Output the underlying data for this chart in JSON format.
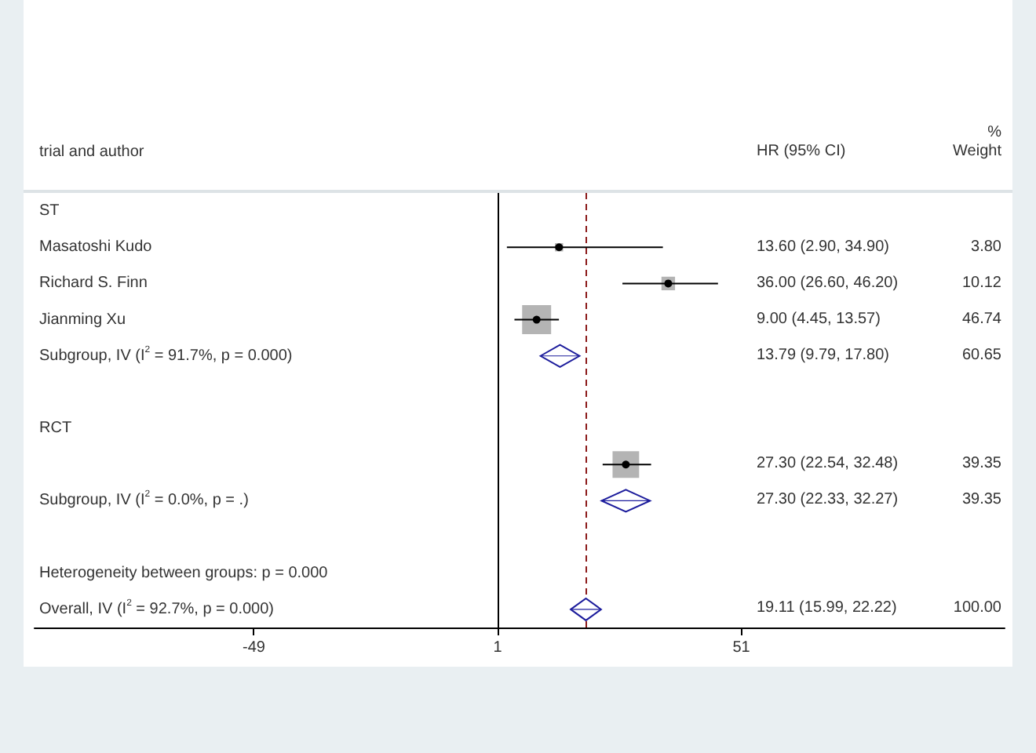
{
  "chart_data": [
    {
      "type": "scatter",
      "orientation": "horizontal",
      "ylabel": "trial and author",
      "categories": [
        "ST",
        "Masatoshi Kudo",
        "Richard S. Finn",
        "Jianming Xu",
        "Subgroup, IV (I$^{2}$ = 91.7%, p = 0.000)",
        null,
        "RCT",
        null,
        "Subgroup, IV (I$^{2}$ = 0.0%, p = .)",
        null,
        "Heterogeneity between groups: p = 0.000",
        "Overall, IV (I$^{2}$ = 92.7%, p = 0.000)"
      ],
      "xlim": [
        -94,
        105
      ],
      "xticks": [
        -49,
        1,
        51
      ],
      "series": [
        {
          "marker": "square",
          "color": "#b4b4b4",
          "values": [
            null,
            13.6,
            36.0,
            9.0,
            null,
            null,
            null,
            27.3,
            null,
            null,
            null,
            null
          ],
          "errors": [
            null,
            [
              2.9,
              34.9
            ],
            [
              26.6,
              46.2
            ],
            [
              4.45,
              13.57
            ],
            null,
            null,
            null,
            [
              22.54,
              32.48
            ],
            null,
            null,
            null,
            null
          ],
          "sizes": [
            null,
            0.08,
            0.22,
            1,
            null,
            null,
            null,
            0.84,
            null,
            null,
            null,
            null
          ]
        },
        {
          "marker": "diamond",
          "color": "#1c1c9c",
          "values": [
            null,
            null,
            null,
            null,
            13.79,
            null,
            null,
            null,
            27.3,
            null,
            null,
            19.11
          ],
          "errors": [
            null,
            null,
            null,
            null,
            [
              9.79,
              17.8
            ],
            null,
            null,
            null,
            [
              22.33,
              32.27
            ],
            null,
            null,
            [
              15.99,
              22.22
            ]
          ]
        }
      ],
      "ref_lines": [
        {
          "axis": "x",
          "value": 1,
          "color": "#000000",
          "line_style": "solid"
        },
        {
          "axis": "x",
          "value": 19.11,
          "color": "#8b1a1a",
          "line_style": "dashed"
        }
      ],
      "grid": false
    },
    {
      "type": "other",
      "categories": [
        "HR (95% CI)",
        "%\nWeight"
      ],
      "cell_labels": [
        [
          null,
          null
        ],
        [
          "13.60 (2.90, 34.90)",
          "3.80"
        ],
        [
          "36.00 (26.60, 46.20)",
          "10.12"
        ],
        [
          "9.00 (4.45, 13.57)",
          "46.74"
        ],
        [
          "13.79 (9.79, 17.80)",
          "60.65"
        ],
        [
          null,
          null
        ],
        [
          null,
          null
        ],
        [
          "27.30 (22.54, 32.48)",
          "39.35"
        ],
        [
          "27.30 (22.33, 32.27)",
          "39.35"
        ],
        [
          null,
          null
        ],
        [
          null,
          null
        ],
        [
          "19.11 (15.99, 22.22)",
          "100.00"
        ]
      ]
    }
  ]
}
